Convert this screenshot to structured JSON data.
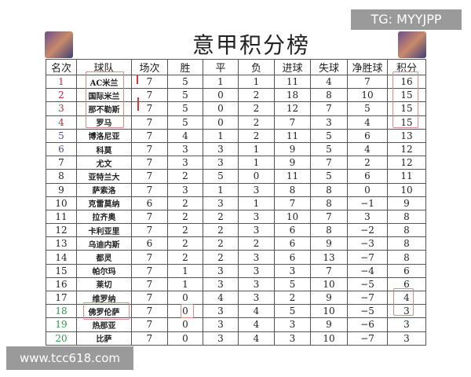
{
  "title": "意甲积分榜",
  "watermark_top": "TG: MYYJPP",
  "watermark_bottom": "www.tcc618.com",
  "columns": [
    "名次",
    "球队",
    "场次",
    "胜",
    "平",
    "负",
    "进球",
    "失球",
    "净胜球",
    "积分"
  ],
  "rank_colors": {
    "top4": "#c8283a",
    "europa": "#4a4aa0",
    "relegation": "#2e9a4a",
    "default": "#222222"
  },
  "rows": [
    [
      "1",
      "AC米兰",
      "7",
      "5",
      "1",
      "1",
      "11",
      "4",
      "7",
      "16"
    ],
    [
      "2",
      "国际米兰",
      "7",
      "5",
      "0",
      "2",
      "18",
      "8",
      "10",
      "15"
    ],
    [
      "3",
      "那不勒斯",
      "7",
      "5",
      "0",
      "2",
      "12",
      "7",
      "5",
      "15"
    ],
    [
      "4",
      "罗马",
      "7",
      "5",
      "0",
      "2",
      "7",
      "3",
      "4",
      "15"
    ],
    [
      "5",
      "博洛尼亚",
      "7",
      "4",
      "1",
      "2",
      "11",
      "5",
      "6",
      "13"
    ],
    [
      "6",
      "科莫",
      "7",
      "3",
      "3",
      "1",
      "9",
      "5",
      "4",
      "12"
    ],
    [
      "7",
      "尤文",
      "7",
      "3",
      "3",
      "1",
      "9",
      "7",
      "2",
      "12"
    ],
    [
      "8",
      "亚特兰大",
      "7",
      "2",
      "5",
      "0",
      "11",
      "5",
      "6",
      "11"
    ],
    [
      "9",
      "萨索洛",
      "7",
      "3",
      "1",
      "3",
      "8",
      "8",
      "0",
      "10"
    ],
    [
      "10",
      "克雷莫纳",
      "6",
      "2",
      "3",
      "1",
      "7",
      "8",
      "−1",
      "9"
    ],
    [
      "11",
      "拉齐奥",
      "7",
      "2",
      "2",
      "3",
      "10",
      "7",
      "3",
      "8"
    ],
    [
      "12",
      "卡利亚里",
      "7",
      "2",
      "2",
      "3",
      "6",
      "8",
      "−2",
      "8"
    ],
    [
      "13",
      "乌迪内斯",
      "6",
      "2",
      "2",
      "2",
      "6",
      "9",
      "−3",
      "8"
    ],
    [
      "14",
      "都灵",
      "7",
      "2",
      "2",
      "3",
      "6",
      "13",
      "−7",
      "8"
    ],
    [
      "15",
      "帕尔玛",
      "7",
      "1",
      "3",
      "3",
      "3",
      "7",
      "−4",
      "6"
    ],
    [
      "16",
      "莱切",
      "7",
      "1",
      "3",
      "3",
      "5",
      "10",
      "−5",
      "6"
    ],
    [
      "17",
      "维罗纳",
      "7",
      "0",
      "4",
      "3",
      "2",
      "9",
      "−7",
      "4"
    ],
    [
      "18",
      "佛罗伦萨",
      "7",
      "0",
      "3",
      "4",
      "5",
      "10",
      "−5",
      "3"
    ],
    [
      "19",
      "热那亚",
      "7",
      "0",
      "3",
      "4",
      "3",
      "9",
      "−6",
      "3"
    ],
    [
      "20",
      "比萨",
      "7",
      "0",
      "3",
      "4",
      "3",
      "10",
      "−7",
      "3"
    ]
  ]
}
